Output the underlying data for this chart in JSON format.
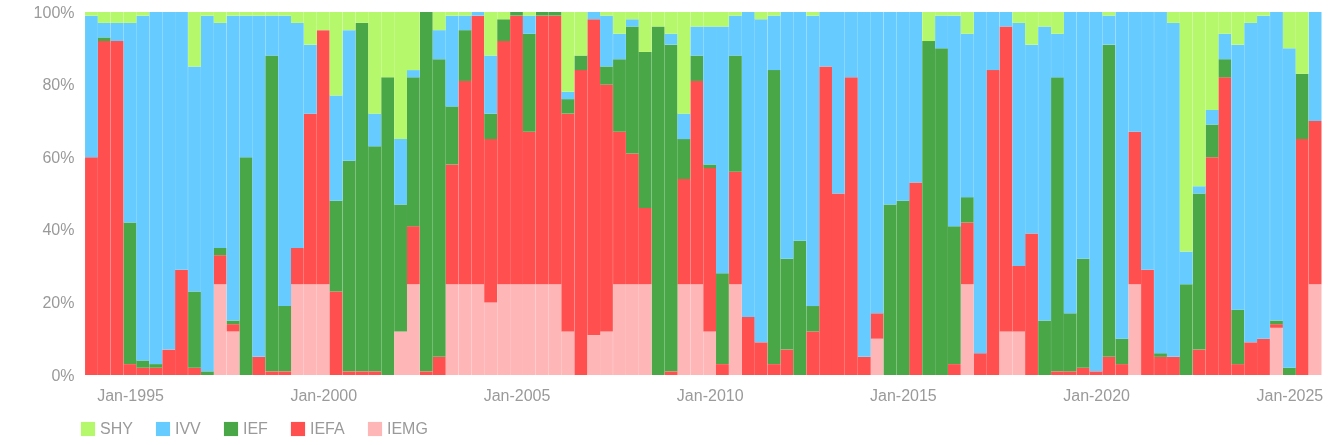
{
  "chart_data": {
    "type": "bar",
    "stacked": true,
    "legend": "bottom",
    "x": [
      "1994-01",
      "1994-05",
      "1994-09",
      "1995-01",
      "1995-05",
      "1995-09",
      "1996-01",
      "1996-05",
      "1996-09",
      "1997-01",
      "1997-05",
      "1997-09",
      "1998-01",
      "1998-05",
      "1998-09",
      "1999-01",
      "1999-05",
      "1999-09",
      "2000-01",
      "2000-05",
      "2000-09",
      "2001-01",
      "2001-05",
      "2001-09",
      "2002-01",
      "2002-05",
      "2002-09",
      "2003-01",
      "2003-05",
      "2003-09",
      "2004-01",
      "2004-05",
      "2004-09",
      "2005-01",
      "2005-05",
      "2005-09",
      "2006-01",
      "2006-05",
      "2006-09",
      "2007-01",
      "2007-05",
      "2007-09",
      "2008-01",
      "2008-05",
      "2008-09",
      "2009-01",
      "2009-05",
      "2009-09",
      "2010-01",
      "2010-05",
      "2010-09",
      "2011-01",
      "2011-05",
      "2011-09",
      "2012-01",
      "2012-05",
      "2012-09",
      "2013-01",
      "2013-05",
      "2013-09",
      "2014-01",
      "2014-05",
      "2014-09",
      "2015-01",
      "2015-05",
      "2015-09",
      "2016-01",
      "2016-05",
      "2016-09",
      "2017-01",
      "2017-05",
      "2017-09",
      "2018-01",
      "2018-05",
      "2018-09",
      "2019-01",
      "2019-05",
      "2019-09",
      "2020-01",
      "2020-05",
      "2020-09",
      "2021-01",
      "2021-05",
      "2021-09",
      "2022-01",
      "2022-05",
      "2022-09",
      "2023-01",
      "2023-05",
      "2023-09",
      "2024-01",
      "2024-05",
      "2024-09",
      "2025-01",
      "2025-05",
      "2025-09"
    ],
    "xlim": [
      "1993-11",
      "2026-01"
    ],
    "xticks": [
      {
        "value": "1995-01",
        "label": "Jan-1995"
      },
      {
        "value": "2000-01",
        "label": "Jan-2000"
      },
      {
        "value": "2005-01",
        "label": "Jan-2005"
      },
      {
        "value": "2010-01",
        "label": "Jan-2010"
      },
      {
        "value": "2015-01",
        "label": "Jan-2015"
      },
      {
        "value": "2020-01",
        "label": "Jan-2020"
      },
      {
        "value": "2025-01",
        "label": "Jan-2025"
      }
    ],
    "ylim": [
      0,
      100
    ],
    "yticks": [
      {
        "value": 0,
        "label": "0%"
      },
      {
        "value": 20,
        "label": "20%"
      },
      {
        "value": 40,
        "label": "40%"
      },
      {
        "value": 60,
        "label": "60%"
      },
      {
        "value": 80,
        "label": "80%"
      },
      {
        "value": 100,
        "label": "100%"
      }
    ],
    "series": [
      {
        "name": "IEMG",
        "color": "#ffb6b6",
        "values": [
          0,
          0,
          0,
          0,
          0,
          0,
          0,
          0,
          0,
          0,
          25,
          12,
          0,
          0,
          0,
          0,
          25,
          25,
          25,
          0,
          0,
          0,
          0,
          0,
          12,
          25,
          0,
          0,
          25,
          25,
          25,
          20,
          25,
          25,
          25,
          25,
          25,
          12,
          0,
          11,
          12,
          25,
          25,
          25,
          0,
          0,
          25,
          25,
          12,
          0,
          25,
          0,
          0,
          0,
          0,
          0,
          0,
          0,
          0,
          0,
          0,
          10,
          0,
          0,
          0,
          0,
          0,
          0,
          25,
          0,
          0,
          12,
          12,
          0,
          0,
          0,
          0,
          0,
          0,
          0,
          0,
          25,
          0,
          0,
          0,
          0,
          0,
          0,
          0,
          0,
          0,
          0,
          13,
          0,
          0,
          25
        ]
      },
      {
        "name": "IEFA",
        "color": "#ff4f4f",
        "values": [
          60,
          92,
          92,
          3,
          2,
          2,
          7,
          29,
          2,
          0,
          8,
          2,
          0,
          5,
          1,
          1,
          10,
          47,
          70,
          23,
          1,
          1,
          1,
          0,
          0,
          16,
          1,
          5,
          33,
          56,
          74,
          45,
          67,
          74,
          42,
          74,
          74,
          60,
          84,
          87,
          68,
          42,
          36,
          21,
          0,
          1,
          29,
          56,
          45,
          3,
          31,
          16,
          9,
          3,
          7,
          0,
          12,
          85,
          50,
          82,
          5,
          7,
          0,
          0,
          53,
          0,
          0,
          3,
          17,
          6,
          84,
          84,
          18,
          39,
          0,
          1,
          1,
          2,
          1,
          5,
          3,
          42,
          29,
          5,
          5,
          0,
          7,
          60,
          82,
          3,
          9,
          10,
          1,
          0,
          65,
          45
        ]
      },
      {
        "name": "IEF",
        "color": "#4aa748",
        "values": [
          0,
          1,
          0,
          39,
          2,
          1,
          0,
          0,
          21,
          1,
          2,
          1,
          60,
          0,
          87,
          18,
          0,
          0,
          0,
          25,
          58,
          96,
          62,
          82,
          35,
          41,
          99,
          82,
          16,
          14,
          0,
          7,
          6,
          1,
          27,
          1,
          1,
          4,
          4,
          0,
          5,
          20,
          35,
          43,
          96,
          90,
          11,
          7,
          1,
          25,
          32,
          0,
          0,
          81,
          25,
          37,
          7,
          0,
          0,
          0,
          0,
          0,
          47,
          48,
          0,
          92,
          90,
          38,
          7,
          0,
          0,
          0,
          0,
          0,
          15,
          81,
          16,
          30,
          0,
          86,
          7,
          0,
          0,
          1,
          0,
          25,
          43,
          9,
          5,
          15,
          0,
          0,
          1,
          2,
          18,
          0
        ]
      },
      {
        "name": "IVV",
        "color": "#66cbff",
        "values": [
          39,
          4,
          5,
          55,
          95,
          97,
          93,
          71,
          62,
          98,
          62,
          84,
          39,
          94,
          11,
          80,
          62,
          19,
          0,
          29,
          36,
          0,
          9,
          0,
          18,
          2,
          0,
          8,
          25,
          4,
          1,
          16,
          0,
          0,
          5,
          0,
          0,
          2,
          0,
          2,
          14,
          7,
          2,
          0,
          0,
          3,
          7,
          8,
          38,
          68,
          11,
          84,
          89,
          15,
          68,
          63,
          80,
          15,
          50,
          18,
          95,
          83,
          53,
          52,
          47,
          0,
          9,
          58,
          45,
          94,
          16,
          4,
          67,
          52,
          81,
          12,
          83,
          68,
          99,
          8,
          90,
          33,
          71,
          94,
          92,
          9,
          2,
          4,
          7,
          73,
          88,
          89,
          85,
          88,
          0,
          30
        ]
      },
      {
        "name": "SHY",
        "color": "#b5f86b",
        "values": [
          1,
          3,
          3,
          3,
          1,
          0,
          0,
          0,
          15,
          1,
          3,
          1,
          1,
          1,
          1,
          1,
          3,
          9,
          5,
          23,
          5,
          3,
          28,
          18,
          35,
          16,
          0,
          5,
          1,
          1,
          0,
          12,
          2,
          0,
          1,
          0,
          0,
          22,
          12,
          0,
          1,
          6,
          2,
          11,
          4,
          6,
          28,
          4,
          4,
          4,
          1,
          0,
          2,
          1,
          0,
          0,
          1,
          0,
          0,
          0,
          0,
          0,
          0,
          0,
          0,
          8,
          1,
          1,
          6,
          0,
          0,
          0,
          3,
          9,
          4,
          6,
          0,
          0,
          0,
          1,
          0,
          0,
          0,
          0,
          3,
          66,
          48,
          27,
          6,
          9,
          3,
          1,
          0,
          10,
          17,
          0
        ]
      }
    ]
  }
}
